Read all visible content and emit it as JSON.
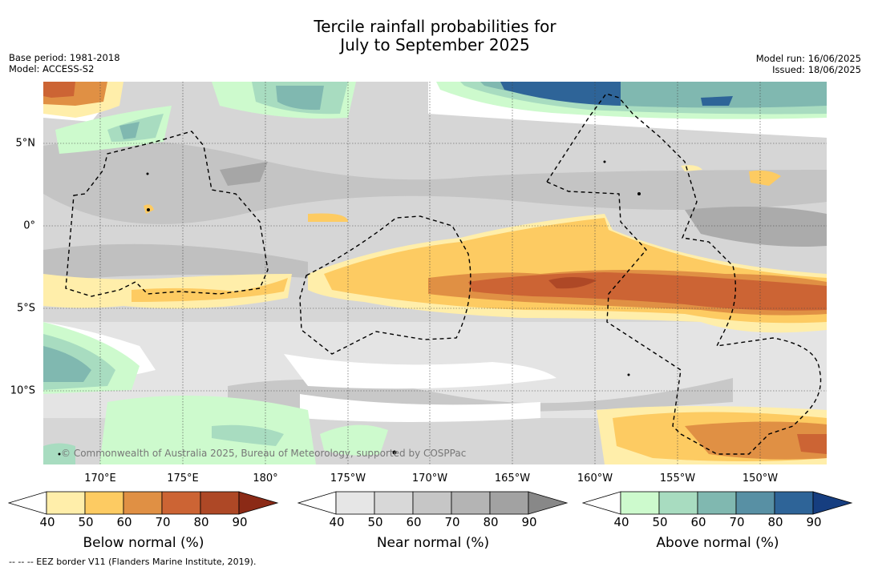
{
  "title_line1": "Tercile rainfall probabilities for",
  "title_line2": "July to September 2025",
  "meta_left": {
    "base_period": "Base period: 1981-2018",
    "model": "Model: ACCESS-S2"
  },
  "meta_right": {
    "model_run": "Model run: 16/06/2025",
    "issued": "Issued: 18/06/2025"
  },
  "lat_labels": [
    "5°N",
    "0°",
    "5°S",
    "10°S"
  ],
  "lon_labels": [
    "170°E",
    "175°E",
    "180°",
    "175°W",
    "170°W",
    "165°W",
    "160°W",
    "155°W",
    "150°W"
  ],
  "copyright": "© Commonwealth of Australia 2025, Bureau of Meteorology, supported by COSPPac",
  "footer": "--  --  -- EEZ border V11 (Flanders Marine Institute, 2019).",
  "colorbars": [
    {
      "label": "Below normal (%)",
      "ticks": [
        "40",
        "50",
        "60",
        "70",
        "80",
        "90"
      ],
      "colors": [
        "#ffeeaa",
        "#fdcb62",
        "#e09044",
        "#cc6434",
        "#ae4826",
        "#8b2a16"
      ]
    },
    {
      "label": "Near normal (%)",
      "ticks": [
        "40",
        "50",
        "60",
        "70",
        "80",
        "90"
      ],
      "colors": [
        "#e6e6e6",
        "#d8d8d8",
        "#c6c6c6",
        "#b4b4b4",
        "#a2a2a2",
        "#888888"
      ]
    },
    {
      "label": "Above normal (%)",
      "ticks": [
        "40",
        "50",
        "60",
        "70",
        "80",
        "90"
      ],
      "colors": [
        "#cdfacd",
        "#a8dcc0",
        "#80b8b0",
        "#5890a4",
        "#2e6498",
        "#163e80"
      ]
    }
  ]
}
